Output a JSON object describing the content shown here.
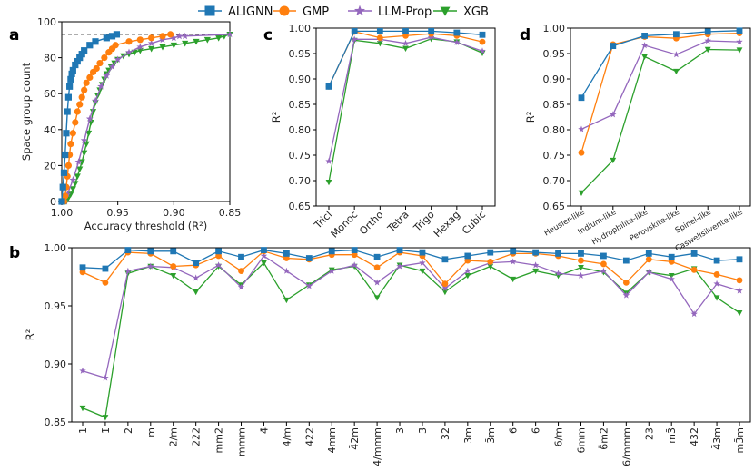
{
  "legend": {
    "entries": [
      {
        "name": "ALIGNN",
        "color": "#1f77b4",
        "marker": "square"
      },
      {
        "name": "GMP",
        "color": "#ff7f0e",
        "marker": "circle"
      },
      {
        "name": "LLM-Prop",
        "color": "#9467bd",
        "marker": "star"
      },
      {
        "name": "XGB",
        "color": "#2ca02c",
        "marker": "triangle-down"
      }
    ]
  },
  "panel_letters": {
    "a": "a",
    "b": "b",
    "c": "c",
    "d": "d"
  },
  "chart_data": [
    {
      "id": "a",
      "type": "line",
      "xlabel": "Accuracy threshold (R²)",
      "ylabel": "Space group count",
      "xlim": [
        1.0,
        0.85
      ],
      "ylim": [
        0,
        100
      ],
      "xticks": [
        "1.00",
        "0.95",
        "0.90",
        "0.85"
      ],
      "xtick_values": [
        1.0,
        0.95,
        0.9,
        0.85
      ],
      "yticks": [
        "0",
        "20",
        "40",
        "60",
        "80",
        "100"
      ],
      "ytick_values": [
        0,
        20,
        40,
        60,
        80,
        100
      ],
      "reference_line": 93,
      "series": [
        {
          "name": "ALIGNN",
          "x": [
            1.0,
            0.999,
            0.998,
            0.997,
            0.996,
            0.995,
            0.994,
            0.993,
            0.992,
            0.991,
            0.99,
            0.988,
            0.986,
            0.984,
            0.982,
            0.98,
            0.975,
            0.97,
            0.96,
            0.955,
            0.951
          ],
          "y": [
            0,
            8,
            16,
            26,
            38,
            50,
            58,
            64,
            68,
            71,
            73,
            76,
            78,
            80,
            82,
            84,
            87,
            89,
            91,
            92,
            93
          ]
        },
        {
          "name": "GMP",
          "x": [
            0.998,
            0.997,
            0.996,
            0.995,
            0.994,
            0.993,
            0.992,
            0.99,
            0.988,
            0.986,
            0.984,
            0.982,
            0.98,
            0.978,
            0.975,
            0.972,
            0.969,
            0.966,
            0.962,
            0.958,
            0.955,
            0.952,
            0.94,
            0.93,
            0.92,
            0.91,
            0.903
          ],
          "y": [
            0,
            3,
            8,
            14,
            20,
            26,
            32,
            38,
            44,
            50,
            54,
            58,
            62,
            66,
            69,
            72,
            74,
            77,
            80,
            83,
            85,
            87,
            89,
            90,
            91,
            92,
            93
          ]
        },
        {
          "name": "LLM-Prop",
          "x": [
            0.997,
            0.995,
            0.99,
            0.985,
            0.98,
            0.975,
            0.97,
            0.965,
            0.96,
            0.955,
            0.95,
            0.94,
            0.93,
            0.92,
            0.91,
            0.9,
            0.895,
            0.89,
            0.85
          ],
          "y": [
            0,
            4,
            12,
            22,
            34,
            46,
            56,
            64,
            70,
            75,
            79,
            83,
            86,
            88,
            90,
            91,
            92,
            92,
            93
          ]
        },
        {
          "name": "XGB",
          "x": [
            0.996,
            0.994,
            0.992,
            0.99,
            0.988,
            0.986,
            0.984,
            0.982,
            0.98,
            0.978,
            0.976,
            0.974,
            0.972,
            0.97,
            0.968,
            0.966,
            0.964,
            0.962,
            0.96,
            0.958,
            0.956,
            0.953,
            0.95,
            0.945,
            0.94,
            0.935,
            0.93,
            0.92,
            0.91,
            0.9,
            0.89,
            0.88,
            0.87,
            0.86,
            0.855,
            0.85
          ],
          "y": [
            0,
            2,
            4,
            7,
            10,
            14,
            18,
            22,
            27,
            32,
            38,
            44,
            50,
            55,
            59,
            62,
            65,
            68,
            71,
            73,
            75,
            77,
            79,
            81,
            82,
            83,
            84,
            85,
            86,
            87,
            88,
            89,
            90,
            91,
            92,
            93
          ]
        }
      ]
    },
    {
      "id": "c",
      "type": "line",
      "xlabel": "",
      "ylabel": "R²",
      "ylim": [
        0.65,
        1.0
      ],
      "yticks": [
        "0.65",
        "0.70",
        "0.75",
        "0.80",
        "0.85",
        "0.90",
        "0.95",
        "1.00"
      ],
      "ytick_values": [
        0.65,
        0.7,
        0.75,
        0.8,
        0.85,
        0.9,
        0.95,
        1.0
      ],
      "categories": [
        "Tricl",
        "Monoc",
        "Ortho",
        "Tetra",
        "Trigo",
        "Hexag",
        "Cubic"
      ],
      "series": [
        {
          "name": "ALIGNN",
          "values": [
            0.885,
            0.994,
            0.994,
            0.994,
            0.994,
            0.991,
            0.987
          ]
        },
        {
          "name": "GMP",
          "values": [
            0.885,
            0.993,
            0.981,
            0.985,
            0.989,
            0.985,
            0.973
          ]
        },
        {
          "name": "LLM-Prop",
          "values": [
            0.738,
            0.978,
            0.978,
            0.97,
            0.982,
            0.972,
            0.955
          ]
        },
        {
          "name": "XGB",
          "values": [
            0.697,
            0.976,
            0.97,
            0.96,
            0.979,
            0.973,
            0.951
          ]
        }
      ]
    },
    {
      "id": "d",
      "type": "line",
      "xlabel": "",
      "ylabel": "R²",
      "ylim": [
        0.65,
        1.0
      ],
      "yticks": [
        "0.65",
        "0.70",
        "0.75",
        "0.80",
        "0.85",
        "0.90",
        "0.95",
        "1.00"
      ],
      "ytick_values": [
        0.65,
        0.7,
        0.75,
        0.8,
        0.85,
        0.9,
        0.95,
        1.0
      ],
      "categories": [
        "Heusler-like",
        "Indium-like",
        "Hydrophilite-like",
        "Perovskite-like",
        "Spinel-like",
        "Caswellsilverite-like"
      ],
      "series": [
        {
          "name": "ALIGNN",
          "values": [
            0.863,
            0.965,
            0.985,
            0.988,
            0.993,
            0.995
          ]
        },
        {
          "name": "GMP",
          "values": [
            0.755,
            0.968,
            0.983,
            0.98,
            0.988,
            0.99
          ]
        },
        {
          "name": "LLM-Prop",
          "values": [
            0.801,
            0.83,
            0.966,
            0.948,
            0.975,
            0.973
          ]
        },
        {
          "name": "XGB",
          "values": [
            0.676,
            0.74,
            0.944,
            0.915,
            0.958,
            0.957
          ]
        }
      ]
    },
    {
      "id": "b",
      "type": "line",
      "xlabel": "",
      "ylabel": "R²",
      "ylim": [
        0.85,
        1.0
      ],
      "yticks": [
        "0.85",
        "0.90",
        "0.95",
        "1.00"
      ],
      "ytick_values": [
        0.85,
        0.9,
        0.95,
        1.0
      ],
      "categories": [
        "1",
        "1̄",
        "2",
        "m",
        "2/m",
        "222",
        "mm2",
        "mmm",
        "4̄",
        "4/m",
        "422",
        "4mm",
        "4̄2m",
        "4/mmm",
        "3",
        "3̄",
        "32",
        "3m",
        "3̄m",
        "6",
        "6̄",
        "6/m",
        "6mm",
        "6̄m2",
        "6/mmm",
        "23",
        "m3̄",
        "432",
        "4̄3m",
        "m3̄m"
      ],
      "series": [
        {
          "name": "ALIGNN",
          "values": [
            0.983,
            0.982,
            0.998,
            0.997,
            0.997,
            0.987,
            0.997,
            0.992,
            0.998,
            0.995,
            0.991,
            0.997,
            0.998,
            0.992,
            0.998,
            0.996,
            0.99,
            0.993,
            0.996,
            0.997,
            0.996,
            0.995,
            0.995,
            0.993,
            0.989,
            0.995,
            0.992,
            0.995,
            0.989,
            0.99
          ]
        },
        {
          "name": "GMP",
          "values": [
            0.979,
            0.97,
            0.996,
            0.995,
            0.984,
            0.985,
            0.993,
            0.98,
            0.997,
            0.991,
            0.99,
            0.994,
            0.994,
            0.983,
            0.996,
            0.993,
            0.969,
            0.989,
            0.988,
            0.995,
            0.995,
            0.993,
            0.989,
            0.986,
            0.97,
            0.99,
            0.988,
            0.981,
            0.977,
            0.972
          ]
        },
        {
          "name": "LLM-Prop",
          "values": [
            0.894,
            0.888,
            0.98,
            0.984,
            0.983,
            0.974,
            0.985,
            0.966,
            0.993,
            0.98,
            0.967,
            0.98,
            0.985,
            0.97,
            0.984,
            0.987,
            0.965,
            0.98,
            0.987,
            0.988,
            0.985,
            0.978,
            0.976,
            0.98,
            0.959,
            0.979,
            0.973,
            0.943,
            0.969,
            0.963
          ]
        },
        {
          "name": "XGB",
          "values": [
            0.862,
            0.854,
            0.978,
            0.984,
            0.976,
            0.962,
            0.984,
            0.968,
            0.987,
            0.955,
            0.968,
            0.981,
            0.984,
            0.957,
            0.985,
            0.98,
            0.962,
            0.976,
            0.984,
            0.973,
            0.98,
            0.976,
            0.983,
            0.979,
            0.961,
            0.979,
            0.976,
            0.982,
            0.957,
            0.944
          ]
        }
      ]
    }
  ]
}
